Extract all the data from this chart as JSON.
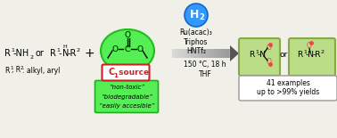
{
  "bg_color": "#f0f0e8",
  "ellipse_color": "#55ee55",
  "ellipse_edge": "#22bb22",
  "h2_color": "#3399ff",
  "h2_edge": "#1166cc",
  "product_box_color": "#bbdd88",
  "product_box_edge": "#88aa44",
  "c1_box_face": "#ffffff",
  "c1_box_edge": "#cc2222",
  "green_quote_face": "#55ee55",
  "green_quote_edge": "#22aa22",
  "result_box_face": "#ffffff",
  "result_box_edge": "#999999",
  "arrow_light": "#cccccc",
  "arrow_dark": "#666666",
  "text_red": "#cc2222",
  "text_pink": "#ee4444",
  "conditions": [
    "Ru(acac)₃",
    "Triphos",
    "HNTf₂"
  ],
  "arrow_conditions": [
    "150 °C, 18 h",
    "THF"
  ],
  "green_box_texts": [
    "“non-toxic”",
    "“biodegradable”",
    "“easily accesible”"
  ],
  "result_text": [
    "41 examples",
    "up to >99% yields"
  ]
}
